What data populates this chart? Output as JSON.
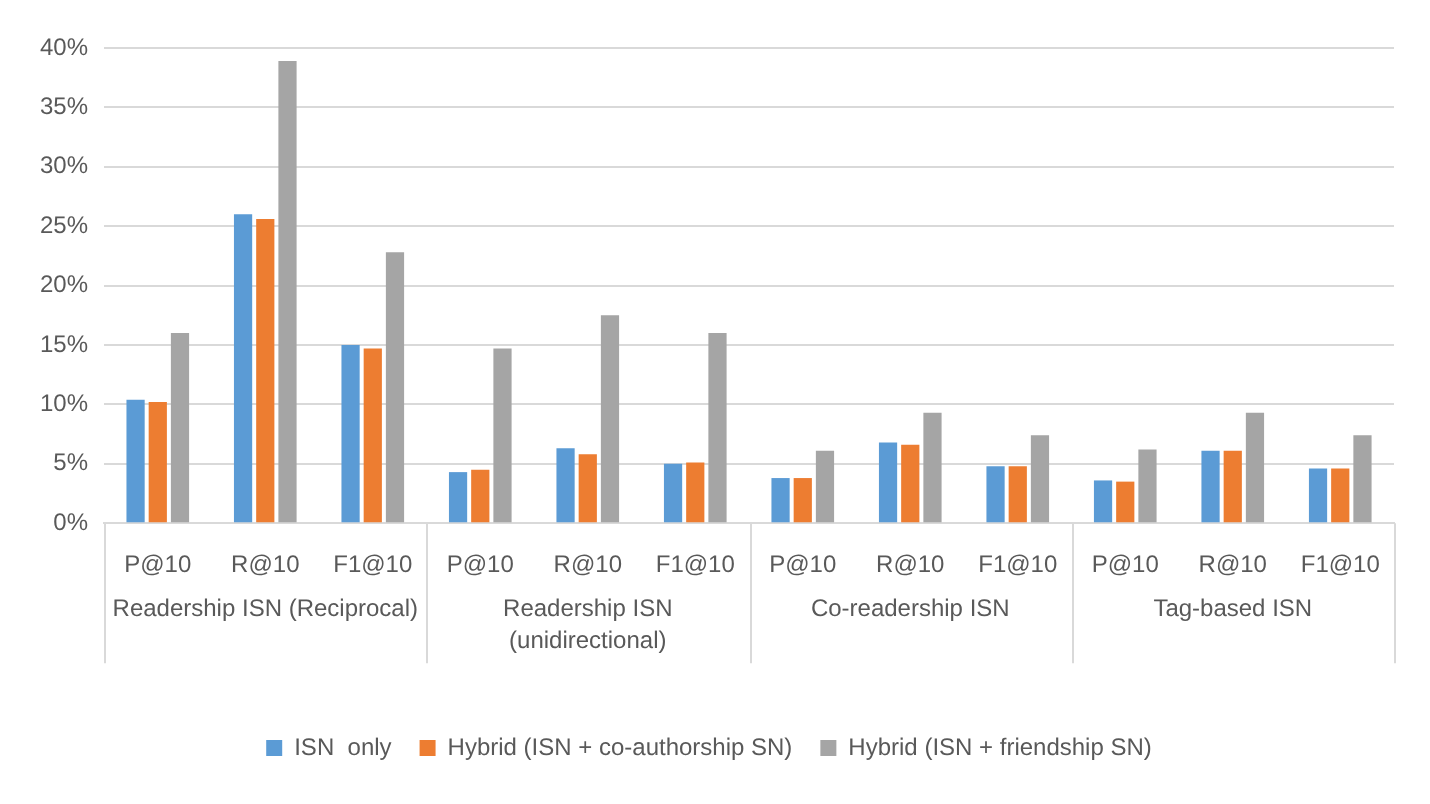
{
  "chart_data": {
    "type": "bar",
    "categories": [
      "P@10",
      "R@10",
      "F1@10",
      "P@10",
      "R@10",
      "F1@10",
      "P@10",
      "R@10",
      "F1@10",
      "P@10",
      "R@10",
      "F1@10"
    ],
    "annotations": [
      "Readership ISN (Reciprocal)",
      "Readership ISN (unidirectional)",
      "Co-readership ISN",
      "Tag-based ISN"
    ],
    "series": [
      {
        "name": "ISN  only",
        "color": "#5b9bd5",
        "values": [
          10.4,
          26.0,
          15.0,
          4.3,
          6.3,
          5.0,
          3.8,
          6.8,
          4.8,
          3.6,
          6.1,
          4.6
        ]
      },
      {
        "name": "Hybrid (ISN + co-authorship SN)",
        "color": "#ed7d31",
        "values": [
          10.2,
          25.6,
          14.7,
          4.5,
          5.8,
          5.1,
          3.8,
          6.6,
          4.8,
          3.5,
          6.1,
          4.6
        ]
      },
      {
        "name": "Hybrid (ISN + friendship SN)",
        "color": "#a5a5a5",
        "values": [
          16.0,
          38.9,
          22.8,
          14.7,
          17.5,
          16.0,
          6.1,
          9.3,
          7.4,
          6.2,
          9.3,
          7.4
        ]
      }
    ],
    "ylim": [
      0,
      40
    ],
    "yticks": [
      {
        "value": 0,
        "label": "0%"
      },
      {
        "value": 5,
        "label": "5%"
      },
      {
        "value": 10,
        "label": "10%"
      },
      {
        "value": 15,
        "label": "15%"
      },
      {
        "value": 20,
        "label": "20%"
      },
      {
        "value": 25,
        "label": "25%"
      },
      {
        "value": 30,
        "label": "30%"
      },
      {
        "value": 35,
        "label": "35%"
      },
      {
        "value": 40,
        "label": "40%"
      }
    ],
    "grid": "y",
    "legend": "bottom"
  }
}
